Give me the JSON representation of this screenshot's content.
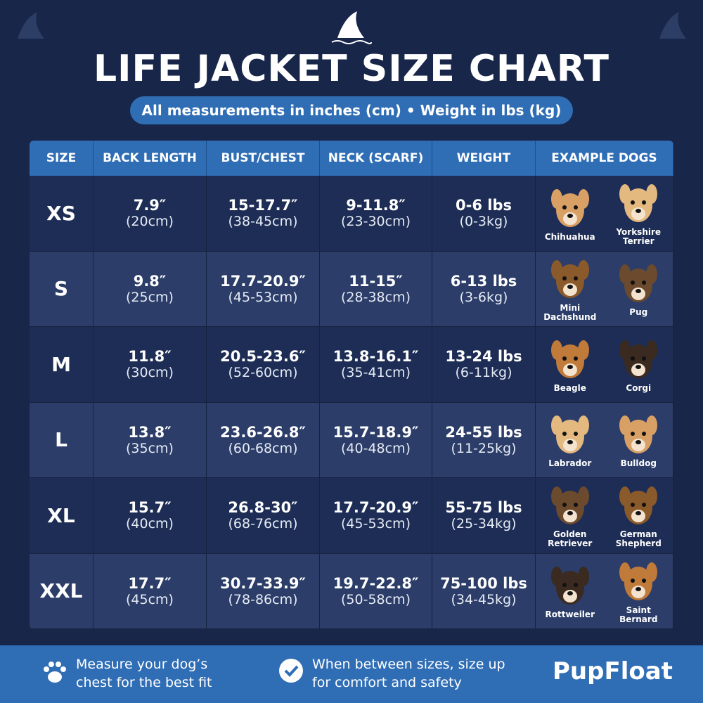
{
  "header": {
    "title": "LIFE JACKET SIZE CHART",
    "subtitle": "All measurements in inches (cm) • Weight in lbs (kg)"
  },
  "table": {
    "columns": [
      "SIZE",
      "BACK LENGTH",
      "BUST/CHEST",
      "NECK (SCARF)",
      "WEIGHT",
      "EXAMPLE DOGS"
    ],
    "rows": [
      {
        "size": "XS",
        "cells": [
          [
            "7.9″",
            "(20cm)"
          ],
          [
            "15-17.7″",
            "(38-45cm)"
          ],
          [
            "9-11.8″",
            "(23-30cm)"
          ],
          [
            "0-6 lbs",
            "(0-3kg)"
          ]
        ],
        "dogs": [
          "Chihuahua",
          "Yorkshire Terrier"
        ]
      },
      {
        "size": "S",
        "cells": [
          [
            "9.8″",
            "(25cm)"
          ],
          [
            "17.7-20.9″",
            "(45-53cm)"
          ],
          [
            "11-15″",
            "(28-38cm)"
          ],
          [
            "6-13 lbs",
            "(3-6kg)"
          ]
        ],
        "dogs": [
          "Mini Dachshund",
          "Pug"
        ]
      },
      {
        "size": "M",
        "cells": [
          [
            "11.8″",
            "(30cm)"
          ],
          [
            "20.5-23.6″",
            "(52-60cm)"
          ],
          [
            "13.8-16.1″",
            "(35-41cm)"
          ],
          [
            "13-24 lbs",
            "(6-11kg)"
          ]
        ],
        "dogs": [
          "Beagle",
          "Corgi"
        ]
      },
      {
        "size": "L",
        "cells": [
          [
            "13.8″",
            "(35cm)"
          ],
          [
            "23.6-26.8″",
            "(60-68cm)"
          ],
          [
            "15.7-18.9″",
            "(40-48cm)"
          ],
          [
            "24-55 lbs",
            "(11-25kg)"
          ]
        ],
        "dogs": [
          "Labrador",
          "Bulldog"
        ]
      },
      {
        "size": "XL",
        "cells": [
          [
            "15.7″",
            "(40cm)"
          ],
          [
            "26.8-30″",
            "(68-76cm)"
          ],
          [
            "17.7-20.9″",
            "(45-53cm)"
          ],
          [
            "55-75 lbs",
            "(25-34kg)"
          ]
        ],
        "dogs": [
          "Golden Retriever",
          "German Shepherd"
        ]
      },
      {
        "size": "XXL",
        "cells": [
          [
            "17.7″",
            "(45cm)"
          ],
          [
            "30.7-33.9″",
            "(78-86cm)"
          ],
          [
            "19.7-22.8″",
            "(50-58cm)"
          ],
          [
            "75-100 lbs",
            "(34-45kg)"
          ]
        ],
        "dogs": [
          "Rottweiler",
          "Saint Bernard"
        ]
      }
    ]
  },
  "footer": {
    "tips": [
      "Measure your dog’s chest for the best fit",
      "When between sizes, size up for comfort and safety"
    ],
    "brand": "PupFloat"
  }
}
